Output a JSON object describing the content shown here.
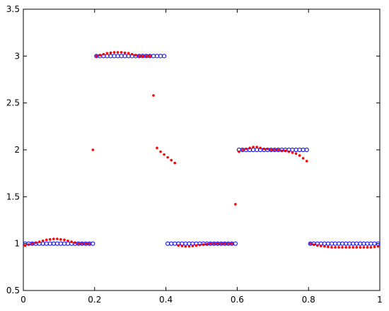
{
  "chart_data": {
    "type": "scatter",
    "x": [
      0.005,
      0.015,
      0.025,
      0.035,
      0.045,
      0.055,
      0.065,
      0.075,
      0.085,
      0.095,
      0.105,
      0.115,
      0.125,
      0.135,
      0.145,
      0.155,
      0.165,
      0.175,
      0.185,
      0.195,
      0.205,
      0.215,
      0.225,
      0.235,
      0.245,
      0.255,
      0.265,
      0.275,
      0.285,
      0.295,
      0.305,
      0.315,
      0.325,
      0.335,
      0.345,
      0.355,
      0.365,
      0.375,
      0.385,
      0.395,
      0.405,
      0.415,
      0.425,
      0.435,
      0.445,
      0.455,
      0.465,
      0.475,
      0.485,
      0.495,
      0.505,
      0.515,
      0.525,
      0.535,
      0.545,
      0.555,
      0.565,
      0.575,
      0.585,
      0.595,
      0.605,
      0.615,
      0.625,
      0.635,
      0.645,
      0.655,
      0.665,
      0.675,
      0.685,
      0.695,
      0.705,
      0.715,
      0.725,
      0.735,
      0.745,
      0.755,
      0.765,
      0.775,
      0.785,
      0.795,
      0.805,
      0.815,
      0.825,
      0.835,
      0.845,
      0.855,
      0.865,
      0.875,
      0.885,
      0.895,
      0.905,
      0.915,
      0.925,
      0.935,
      0.945,
      0.955,
      0.965,
      0.975,
      0.985,
      0.995
    ],
    "series": [
      {
        "color": "#0000ff",
        "marker": "open-circle",
        "values": [
          1,
          1,
          1,
          1,
          1,
          1,
          1,
          1,
          1,
          1,
          1,
          1,
          1,
          1,
          1,
          1,
          1,
          1,
          1,
          1,
          3,
          3,
          3,
          3,
          3,
          3,
          3,
          3,
          3,
          3,
          3,
          3,
          3,
          3,
          3,
          3,
          3,
          3,
          3,
          3,
          1,
          1,
          1,
          1,
          1,
          1,
          1,
          1,
          1,
          1,
          1,
          1,
          1,
          1,
          1,
          1,
          1,
          1,
          1,
          1,
          2,
          2,
          2,
          2,
          2,
          2,
          2,
          2,
          2,
          2,
          2,
          2,
          2,
          2,
          2,
          2,
          2,
          2,
          2,
          2,
          1,
          1,
          1,
          1,
          1,
          1,
          1,
          1,
          1,
          1,
          1,
          1,
          1,
          1,
          1,
          1,
          1,
          1,
          1,
          1
        ]
      },
      {
        "color": "#ff0000",
        "marker": "dot",
        "values": [
          0.98,
          0.99,
          1.0,
          1.01,
          1.02,
          1.03,
          1.04,
          1.045,
          1.05,
          1.05,
          1.045,
          1.04,
          1.03,
          1.02,
          1.01,
          1.0,
          1.0,
          1.0,
          1.0,
          2.0,
          3.0,
          3.01,
          3.02,
          3.03,
          3.035,
          3.04,
          3.04,
          3.04,
          3.035,
          3.03,
          3.02,
          3.01,
          3.0,
          3.0,
          3.0,
          3.0,
          2.58,
          2.02,
          1.98,
          1.95,
          1.92,
          1.89,
          1.86,
          0.98,
          0.975,
          0.97,
          0.97,
          0.975,
          0.98,
          0.985,
          0.99,
          0.995,
          1.0,
          1.0,
          1.0,
          1.0,
          1.0,
          1.0,
          1.0,
          1.42,
          1.98,
          2.0,
          2.01,
          2.02,
          2.03,
          2.03,
          2.02,
          2.01,
          2.01,
          2.0,
          2.0,
          2.0,
          1.99,
          1.99,
          1.98,
          1.97,
          1.96,
          1.94,
          1.91,
          1.88,
          1.0,
          0.99,
          0.98,
          0.975,
          0.97,
          0.965,
          0.96,
          0.96,
          0.96,
          0.96,
          0.96,
          0.96,
          0.96,
          0.96,
          0.96,
          0.96,
          0.96,
          0.96,
          0.965,
          0.97
        ]
      }
    ],
    "xlim": [
      0,
      1
    ],
    "xticks": [
      0,
      0.2,
      0.4,
      0.6,
      0.8,
      1
    ],
    "ylim": [
      0.5,
      3.5
    ],
    "yticks": [
      0.5,
      1,
      1.5,
      2,
      2.5,
      3,
      3.5
    ]
  }
}
